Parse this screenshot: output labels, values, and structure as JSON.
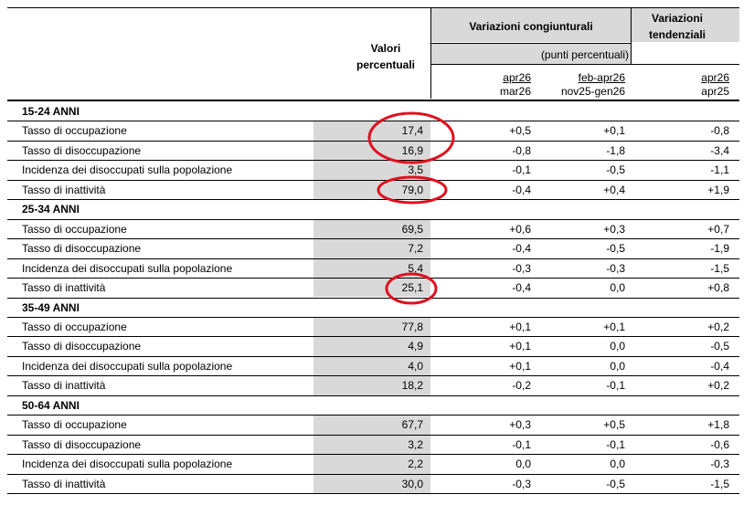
{
  "header": {
    "valori_line1": "Valori",
    "valori_line2": "percentuali",
    "congiunturali": "Variazioni congiunturali",
    "tendenziali_line1": "Variazioni",
    "tendenziali_line2": "tendenziali",
    "punti": "(punti percentuali)",
    "col1_top": "apr26",
    "col1_bottom": "mar26",
    "col2_top": "feb-apr26",
    "col2_bottom": "nov25-gen26",
    "col3_top": "apr26",
    "col3_bottom": "apr25"
  },
  "sections": [
    {
      "title": "15-24 ANNI",
      "rows": [
        {
          "label": "Tasso di occupazione",
          "value": "17,4",
          "c1": "+0,5",
          "c2": "+0,1",
          "c3": "-0,8"
        },
        {
          "label": "Tasso di disoccupazione",
          "value": "16,9",
          "c1": "-0,8",
          "c2": "-1,8",
          "c3": "-3,4"
        },
        {
          "label": "Incidenza dei disoccupati sulla popolazione",
          "value": "3,5",
          "c1": "-0,1",
          "c2": "-0,5",
          "c3": "-1,1"
        },
        {
          "label": "Tasso di inattività",
          "value": "79,0",
          "c1": "-0,4",
          "c2": "+0,4",
          "c3": "+1,9"
        }
      ]
    },
    {
      "title": "25-34 ANNI",
      "rows": [
        {
          "label": "Tasso di occupazione",
          "value": "69,5",
          "c1": "+0,6",
          "c2": "+0,3",
          "c3": "+0,7"
        },
        {
          "label": "Tasso di disoccupazione",
          "value": "7,2",
          "c1": "-0,4",
          "c2": "-0,5",
          "c3": "-1,9"
        },
        {
          "label": "Incidenza dei disoccupati sulla popolazione",
          "value": "5,4",
          "c1": "-0,3",
          "c2": "-0,3",
          "c3": "-1,5"
        },
        {
          "label": "Tasso di inattività",
          "value": "25,1",
          "c1": "-0,4",
          "c2": "0,0",
          "c3": "+0,8"
        }
      ]
    },
    {
      "title": "35-49 ANNI",
      "rows": [
        {
          "label": "Tasso di occupazione",
          "value": "77,8",
          "c1": "+0,1",
          "c2": "+0,1",
          "c3": "+0,2"
        },
        {
          "label": "Tasso di disoccupazione",
          "value": "4,9",
          "c1": "+0,1",
          "c2": "0,0",
          "c3": "-0,5"
        },
        {
          "label": "Incidenza dei disoccupati sulla popolazione",
          "value": "4,0",
          "c1": "+0,1",
          "c2": "0,0",
          "c3": "-0,4"
        },
        {
          "label": "Tasso di inattività",
          "value": "18,2",
          "c1": "-0,2",
          "c2": "-0,1",
          "c3": "+0,2"
        }
      ]
    },
    {
      "title": "50-64 ANNI",
      "rows": [
        {
          "label": "Tasso di occupazione",
          "value": "67,7",
          "c1": "+0,3",
          "c2": "+0,5",
          "c3": "+1,8"
        },
        {
          "label": "Tasso di disoccupazione",
          "value": "3,2",
          "c1": "-0,1",
          "c2": "-0,1",
          "c3": "-0,6"
        },
        {
          "label": "Incidenza dei disoccupati sulla popolazione",
          "value": "2,2",
          "c1": "0,0",
          "c2": "0,0",
          "c3": "-0,3"
        },
        {
          "label": "Tasso di inattività",
          "value": "30,0",
          "c1": "-0,3",
          "c2": "-0,5",
          "c3": "-1,5"
        }
      ]
    }
  ],
  "annotation_color": "#e0101e"
}
